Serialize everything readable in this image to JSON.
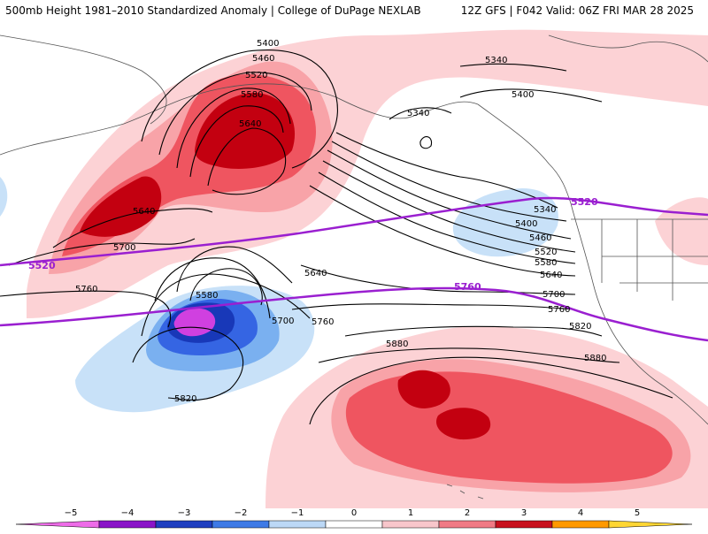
{
  "header": {
    "title_left": "500mb Height 1981–2010 Standardized Anomaly | College of DuPage NEXLAB",
    "title_right": "12Z GFS | F042 Valid: 06Z FRI MAR 28 2025"
  },
  "map": {
    "contour_labels": [
      "5400",
      "5460",
      "5520",
      "5580",
      "5640",
      "5340",
      "5400",
      "5340",
      "5640",
      "5700",
      "5760",
      "5580",
      "5700",
      "5760",
      "5640",
      "5820",
      "5340",
      "5400",
      "5460",
      "5520",
      "5580",
      "5640",
      "5700",
      "5760",
      "5820",
      "5880",
      "5880"
    ],
    "highlight_labels": {
      "contour_5520": "5520",
      "contour_5520_east": "5520",
      "contour_5760": "5760"
    },
    "colors": {
      "highlight_contour": "#9a1fd0",
      "anom_pos_1": "#fcd2d5",
      "anom_pos_2": "#f8a3a8",
      "anom_pos_3": "#ef5560",
      "anom_pos_4": "#c30010",
      "anom_neg_1": "#c8e1f8",
      "anom_neg_2": "#7ab0f0",
      "anom_neg_3": "#3565e3",
      "anom_neg_4": "#1838b8",
      "anom_neg_5": "#d040e0"
    }
  },
  "colorbar": {
    "ticks": [
      "−5",
      "−4",
      "−3",
      "−2",
      "−1",
      "0",
      "1",
      "2",
      "3",
      "4",
      "5"
    ],
    "colors": [
      "#ee6be8",
      "#8a14c8",
      "#1f3fc0",
      "#3e7ae6",
      "#bcd8f6",
      "#ffffff",
      "#f8c6cb",
      "#f07a85",
      "#c8111e",
      "#ff9900",
      "#ffd633"
    ]
  }
}
